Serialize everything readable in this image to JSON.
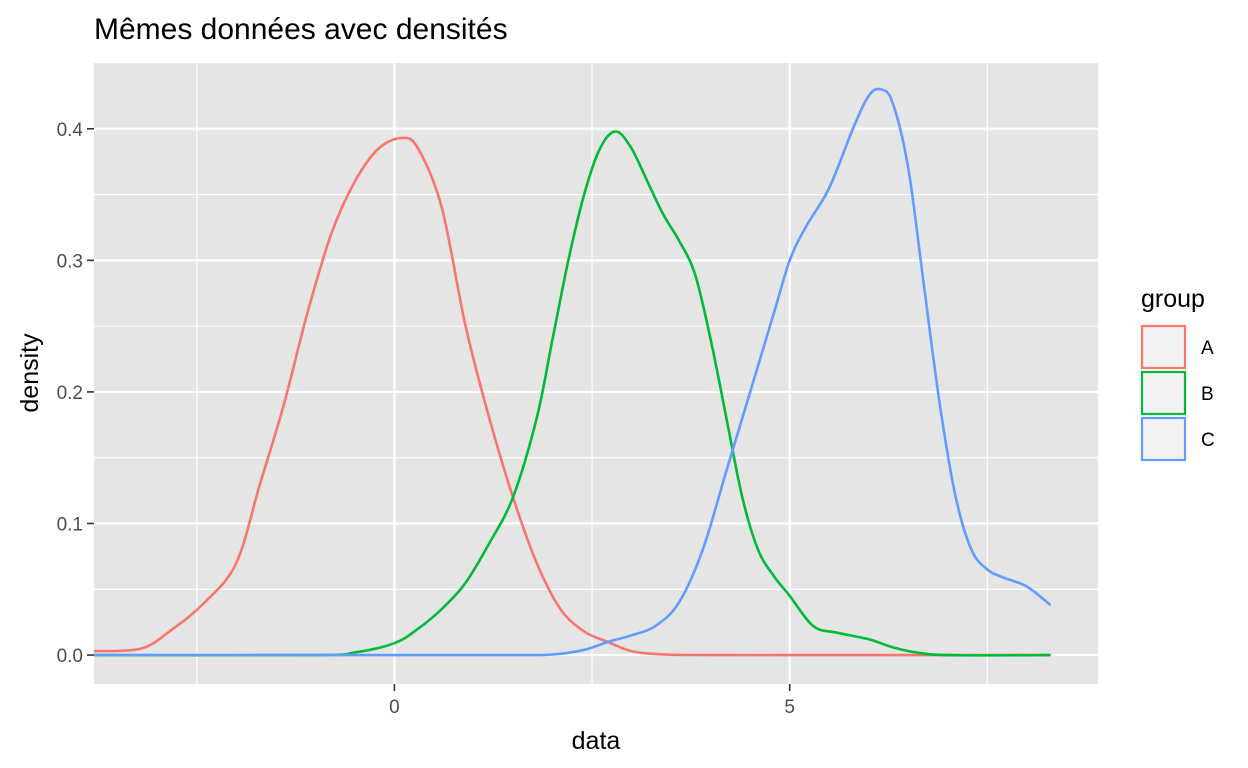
{
  "chart_data": {
    "type": "line",
    "title": "Mêmes données avec densités",
    "xlabel": "data",
    "ylabel": "density",
    "xlim": [
      -3.8,
      8.9
    ],
    "ylim": [
      -0.022,
      0.45
    ],
    "x_ticks": [
      0,
      5
    ],
    "x_ticks_minor": [
      -2.5,
      2.5,
      7.5
    ],
    "y_ticks": [
      0.0,
      0.1,
      0.2,
      0.3,
      0.4
    ],
    "x_tick_labels": [
      "0",
      "5"
    ],
    "y_tick_labels": [
      "0.0",
      "0.1",
      "0.2",
      "0.3",
      "0.4"
    ],
    "grid": true,
    "panel_background": "#e5e5e5",
    "grid_color": "#ffffff",
    "legend": {
      "title": "group",
      "position": "right",
      "entries": [
        "A",
        "B",
        "C"
      ]
    },
    "series": [
      {
        "name": "A",
        "color": "#f8766d",
        "x": [
          -3.8,
          -3.2,
          -2.8,
          -2.4,
          -2.0,
          -1.7,
          -1.4,
          -1.1,
          -0.8,
          -0.5,
          -0.2,
          0.1,
          0.3,
          0.6,
          0.9,
          1.2,
          1.5,
          1.8,
          2.1,
          2.4,
          2.7,
          3.0,
          3.4,
          4.0,
          5.0,
          6.0,
          7.0,
          8.3
        ],
        "y": [
          0.003,
          0.005,
          0.02,
          0.04,
          0.07,
          0.13,
          0.19,
          0.26,
          0.32,
          0.36,
          0.385,
          0.393,
          0.385,
          0.34,
          0.25,
          0.18,
          0.12,
          0.07,
          0.035,
          0.018,
          0.01,
          0.003,
          0.0005,
          0.0,
          0.0,
          0.0,
          0.0,
          0.0
        ]
      },
      {
        "name": "B",
        "color": "#00ba38",
        "x": [
          -3.8,
          -1.0,
          -0.5,
          0.0,
          0.3,
          0.6,
          0.9,
          1.2,
          1.5,
          1.8,
          2.0,
          2.2,
          2.4,
          2.6,
          2.8,
          3.0,
          3.2,
          3.4,
          3.6,
          3.8,
          4.0,
          4.2,
          4.4,
          4.6,
          4.8,
          5.0,
          5.3,
          5.6,
          6.0,
          6.3,
          6.6,
          7.0,
          8.3
        ],
        "y": [
          0.0,
          0.0,
          0.002,
          0.009,
          0.02,
          0.035,
          0.055,
          0.085,
          0.12,
          0.18,
          0.24,
          0.3,
          0.35,
          0.385,
          0.398,
          0.385,
          0.36,
          0.335,
          0.315,
          0.29,
          0.24,
          0.18,
          0.12,
          0.08,
          0.06,
          0.045,
          0.022,
          0.017,
          0.012,
          0.006,
          0.002,
          0.0,
          0.0
        ]
      },
      {
        "name": "C",
        "color": "#619cff",
        "x": [
          -3.8,
          0.0,
          1.5,
          2.0,
          2.4,
          2.7,
          3.0,
          3.3,
          3.6,
          3.9,
          4.2,
          4.5,
          4.8,
          5.0,
          5.2,
          5.5,
          5.8,
          6.0,
          6.15,
          6.3,
          6.5,
          6.7,
          6.9,
          7.1,
          7.3,
          7.5,
          7.7,
          8.0,
          8.3
        ],
        "y": [
          0.0,
          0.0,
          0.0,
          0.0004,
          0.004,
          0.01,
          0.015,
          0.022,
          0.04,
          0.08,
          0.14,
          0.2,
          0.26,
          0.3,
          0.325,
          0.355,
          0.4,
          0.425,
          0.43,
          0.42,
          0.37,
          0.28,
          0.19,
          0.12,
          0.08,
          0.065,
          0.059,
          0.052,
          0.038
        ]
      }
    ]
  }
}
